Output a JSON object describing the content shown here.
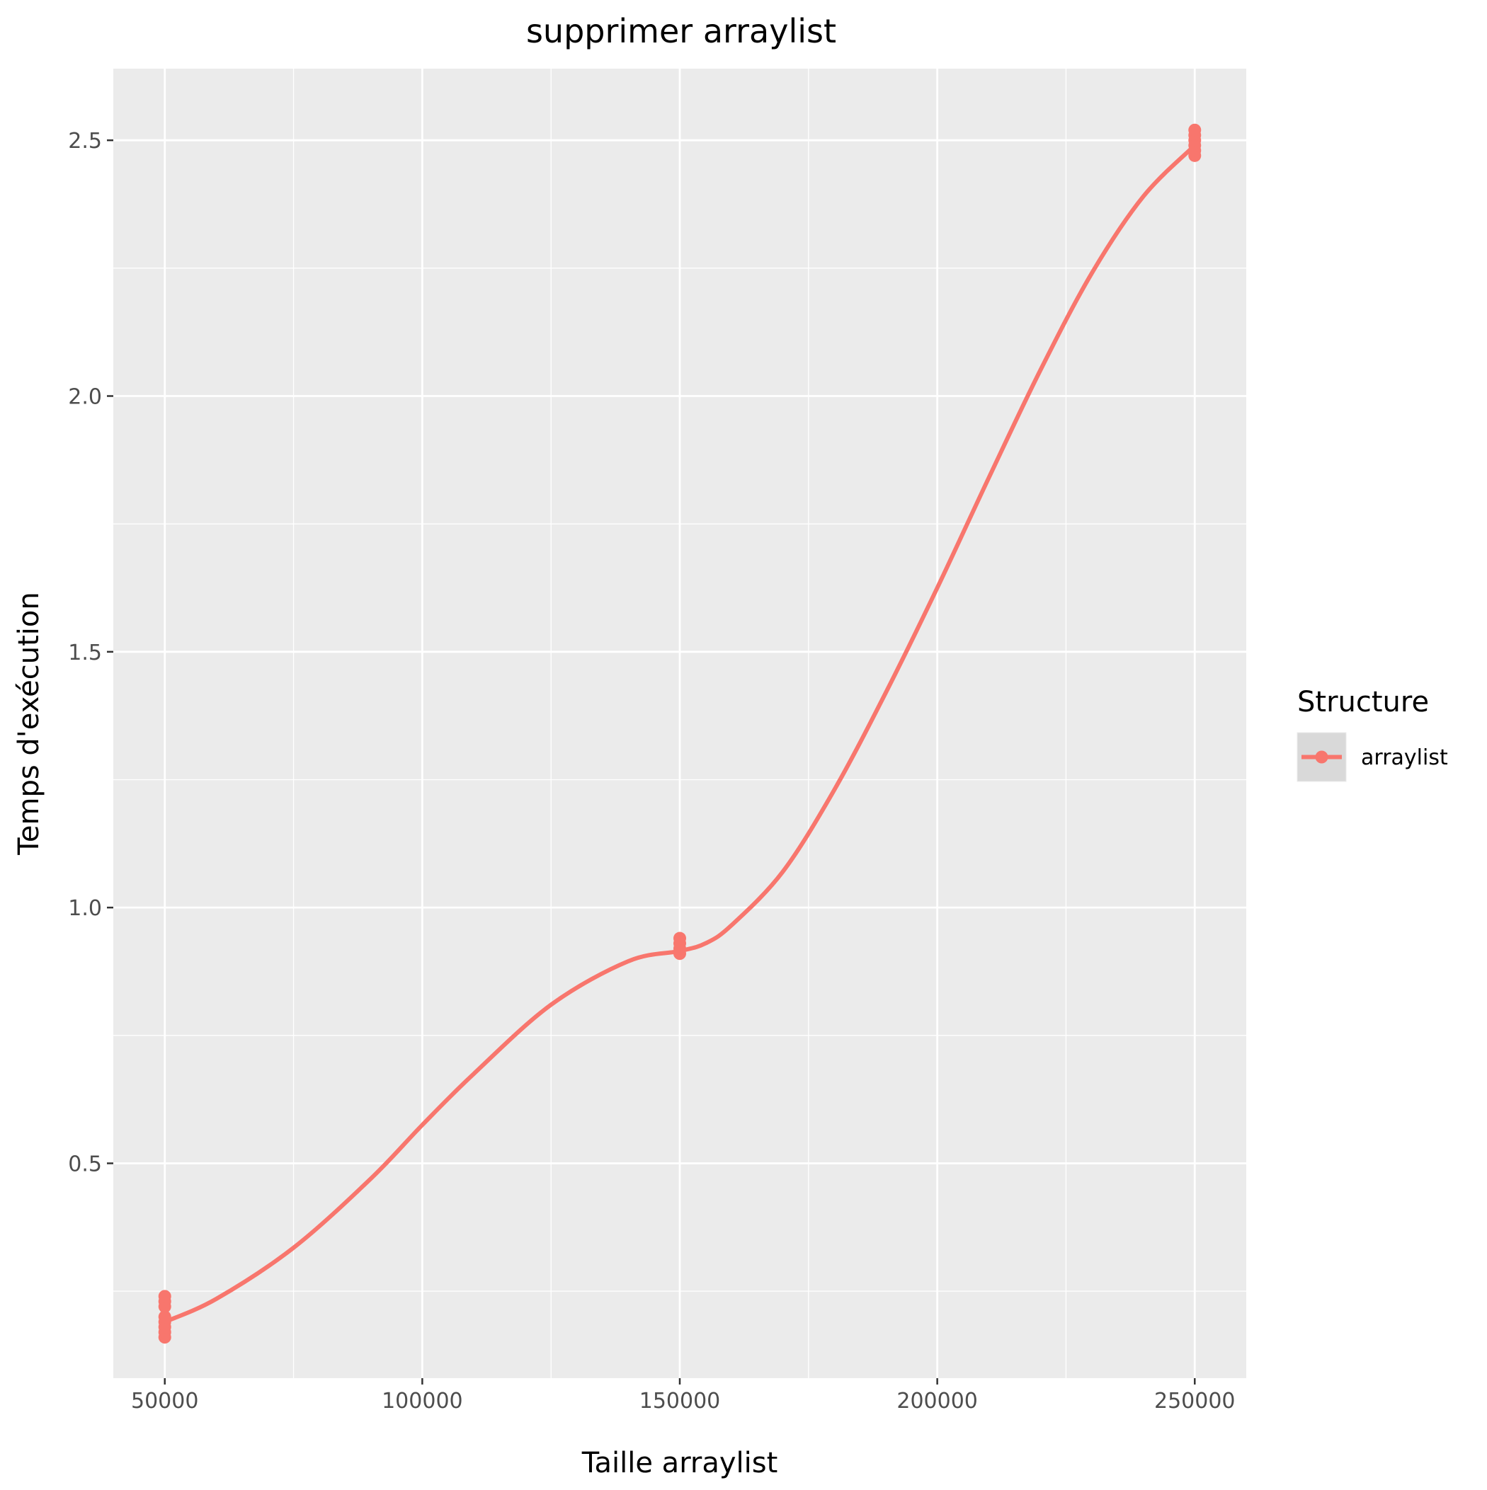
{
  "chart_data": {
    "type": "line",
    "title": "supprimer arraylist",
    "xlabel": "Taille arraylist",
    "ylabel": "Temps d'exécution",
    "xlim": [
      40000,
      260000
    ],
    "ylim": [
      0.08,
      2.64
    ],
    "x_ticks": [
      50000,
      100000,
      150000,
      200000,
      250000
    ],
    "x_tick_labels": [
      "50000",
      "100000",
      "150000",
      "200000",
      "250000"
    ],
    "y_ticks": [
      0.5,
      1.0,
      1.5,
      2.0,
      2.5
    ],
    "y_tick_labels": [
      "0.5",
      "1.0",
      "1.5",
      "2.0",
      "2.5"
    ],
    "grid": true,
    "legend": {
      "title": "Structure",
      "position": "right",
      "entries": [
        "arraylist"
      ]
    },
    "series": [
      {
        "name": "arraylist",
        "color": "#F8766D",
        "points": [
          {
            "x": 50000,
            "y": 0.16
          },
          {
            "x": 50000,
            "y": 0.17
          },
          {
            "x": 50000,
            "y": 0.18
          },
          {
            "x": 50000,
            "y": 0.19
          },
          {
            "x": 50000,
            "y": 0.2
          },
          {
            "x": 50000,
            "y": 0.22
          },
          {
            "x": 50000,
            "y": 0.23
          },
          {
            "x": 50000,
            "y": 0.24
          },
          {
            "x": 150000,
            "y": 0.91
          },
          {
            "x": 150000,
            "y": 0.92
          },
          {
            "x": 150000,
            "y": 0.93
          },
          {
            "x": 150000,
            "y": 0.94
          },
          {
            "x": 250000,
            "y": 2.47
          },
          {
            "x": 250000,
            "y": 2.48
          },
          {
            "x": 250000,
            "y": 2.49
          },
          {
            "x": 250000,
            "y": 2.5
          },
          {
            "x": 250000,
            "y": 2.51
          },
          {
            "x": 250000,
            "y": 2.52
          }
        ],
        "smooth_curve": [
          {
            "x": 50000,
            "y": 0.19
          },
          {
            "x": 60000,
            "y": 0.235
          },
          {
            "x": 75000,
            "y": 0.335
          },
          {
            "x": 90000,
            "y": 0.47
          },
          {
            "x": 100000,
            "y": 0.575
          },
          {
            "x": 110000,
            "y": 0.675
          },
          {
            "x": 125000,
            "y": 0.81
          },
          {
            "x": 140000,
            "y": 0.895
          },
          {
            "x": 150000,
            "y": 0.915
          },
          {
            "x": 155000,
            "y": 0.93
          },
          {
            "x": 160000,
            "y": 0.965
          },
          {
            "x": 170000,
            "y": 1.07
          },
          {
            "x": 180000,
            "y": 1.23
          },
          {
            "x": 190000,
            "y": 1.42
          },
          {
            "x": 200000,
            "y": 1.625
          },
          {
            "x": 210000,
            "y": 1.84
          },
          {
            "x": 220000,
            "y": 2.05
          },
          {
            "x": 230000,
            "y": 2.24
          },
          {
            "x": 240000,
            "y": 2.39
          },
          {
            "x": 250000,
            "y": 2.49
          }
        ]
      }
    ]
  }
}
